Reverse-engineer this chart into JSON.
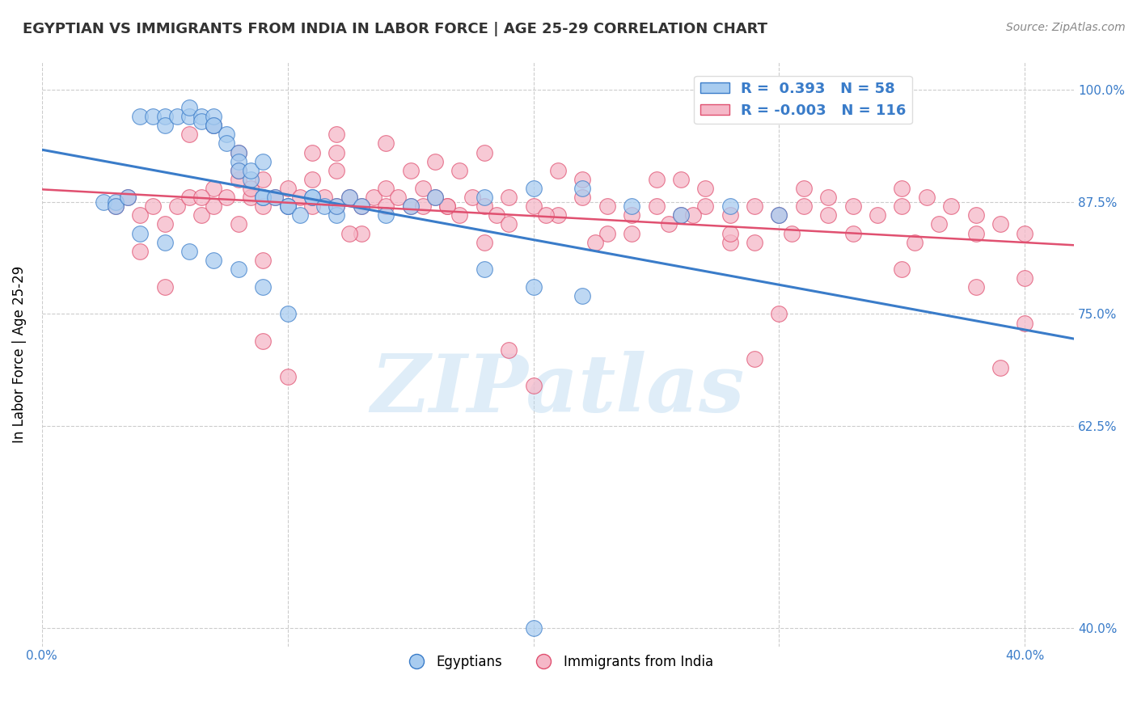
{
  "title": "EGYPTIAN VS IMMIGRANTS FROM INDIA IN LABOR FORCE | AGE 25-29 CORRELATION CHART",
  "source_text": "Source: ZipAtlas.com",
  "ylabel": "In Labor Force | Age 25-29",
  "xlim": [
    0.0,
    0.42
  ],
  "ylim": [
    0.38,
    1.03
  ],
  "yticks": [
    0.4,
    0.625,
    0.75,
    0.875,
    1.0
  ],
  "ytick_labels": [
    "40.0%",
    "62.5%",
    "75.0%",
    "87.5%",
    "100.0%"
  ],
  "xticks": [
    0.0,
    0.1,
    0.2,
    0.3,
    0.4
  ],
  "xtick_labels": [
    "0.0%",
    "",
    "",
    "",
    "40.0%"
  ],
  "blue_color": "#A8CCF0",
  "pink_color": "#F5B8C8",
  "trend_blue": "#3A7CC9",
  "trend_pink": "#E05070",
  "background_color": "#ffffff",
  "grid_color": "#cccccc",
  "watermark": "ZIPatlas",
  "blue_scatter_x": [
    0.025,
    0.03,
    0.03,
    0.035,
    0.04,
    0.045,
    0.05,
    0.05,
    0.055,
    0.06,
    0.06,
    0.065,
    0.065,
    0.07,
    0.07,
    0.07,
    0.075,
    0.075,
    0.08,
    0.08,
    0.08,
    0.085,
    0.085,
    0.09,
    0.09,
    0.09,
    0.095,
    0.1,
    0.1,
    0.105,
    0.11,
    0.11,
    0.115,
    0.12,
    0.12,
    0.125,
    0.13,
    0.14,
    0.15,
    0.16,
    0.18,
    0.2,
    0.22,
    0.24,
    0.26,
    0.28,
    0.3,
    0.18,
    0.2,
    0.22,
    0.04,
    0.05,
    0.06,
    0.07,
    0.08,
    0.09,
    0.1,
    0.2
  ],
  "blue_scatter_y": [
    0.875,
    0.875,
    0.87,
    0.88,
    0.97,
    0.97,
    0.97,
    0.96,
    0.97,
    0.97,
    0.98,
    0.97,
    0.965,
    0.96,
    0.97,
    0.96,
    0.95,
    0.94,
    0.93,
    0.92,
    0.91,
    0.9,
    0.91,
    0.92,
    0.88,
    0.88,
    0.88,
    0.87,
    0.87,
    0.86,
    0.88,
    0.88,
    0.87,
    0.86,
    0.87,
    0.88,
    0.87,
    0.86,
    0.87,
    0.88,
    0.88,
    0.89,
    0.89,
    0.87,
    0.86,
    0.87,
    0.86,
    0.8,
    0.78,
    0.77,
    0.84,
    0.83,
    0.82,
    0.81,
    0.8,
    0.78,
    0.75,
    0.4
  ],
  "pink_scatter_x": [
    0.03,
    0.035,
    0.04,
    0.045,
    0.05,
    0.055,
    0.06,
    0.065,
    0.07,
    0.07,
    0.075,
    0.08,
    0.08,
    0.085,
    0.085,
    0.09,
    0.09,
    0.095,
    0.1,
    0.1,
    0.105,
    0.11,
    0.11,
    0.115,
    0.12,
    0.12,
    0.125,
    0.13,
    0.135,
    0.14,
    0.14,
    0.145,
    0.15,
    0.155,
    0.16,
    0.165,
    0.17,
    0.175,
    0.18,
    0.185,
    0.19,
    0.2,
    0.21,
    0.22,
    0.23,
    0.24,
    0.25,
    0.26,
    0.27,
    0.28,
    0.29,
    0.3,
    0.31,
    0.32,
    0.33,
    0.34,
    0.35,
    0.36,
    0.37,
    0.38,
    0.39,
    0.4,
    0.12,
    0.17,
    0.22,
    0.27,
    0.32,
    0.08,
    0.13,
    0.18,
    0.23,
    0.28,
    0.33,
    0.06,
    0.11,
    0.16,
    0.21,
    0.26,
    0.31,
    0.07,
    0.12,
    0.14,
    0.19,
    0.24,
    0.29,
    0.04,
    0.09,
    0.35,
    0.4,
    0.38,
    0.05,
    0.155,
    0.205,
    0.255,
    0.305,
    0.355,
    0.08,
    0.18,
    0.28,
    0.38,
    0.09,
    0.19,
    0.29,
    0.39,
    0.1,
    0.2,
    0.3,
    0.4,
    0.15,
    0.25,
    0.35,
    0.065,
    0.165,
    0.265,
    0.365,
    0.125,
    0.225
  ],
  "pink_scatter_y": [
    0.87,
    0.88,
    0.86,
    0.87,
    0.85,
    0.87,
    0.88,
    0.86,
    0.87,
    0.89,
    0.88,
    0.9,
    0.91,
    0.88,
    0.89,
    0.87,
    0.9,
    0.88,
    0.87,
    0.89,
    0.88,
    0.87,
    0.9,
    0.88,
    0.87,
    0.91,
    0.88,
    0.87,
    0.88,
    0.87,
    0.89,
    0.88,
    0.87,
    0.89,
    0.88,
    0.87,
    0.86,
    0.88,
    0.87,
    0.86,
    0.88,
    0.87,
    0.86,
    0.88,
    0.87,
    0.86,
    0.87,
    0.86,
    0.87,
    0.86,
    0.87,
    0.86,
    0.87,
    0.86,
    0.87,
    0.86,
    0.87,
    0.88,
    0.87,
    0.86,
    0.85,
    0.84,
    0.93,
    0.91,
    0.9,
    0.89,
    0.88,
    0.85,
    0.84,
    0.83,
    0.84,
    0.83,
    0.84,
    0.95,
    0.93,
    0.92,
    0.91,
    0.9,
    0.89,
    0.96,
    0.95,
    0.94,
    0.85,
    0.84,
    0.83,
    0.82,
    0.81,
    0.8,
    0.79,
    0.78,
    0.78,
    0.87,
    0.86,
    0.85,
    0.84,
    0.83,
    0.93,
    0.93,
    0.84,
    0.84,
    0.72,
    0.71,
    0.7,
    0.69,
    0.68,
    0.67,
    0.75,
    0.74,
    0.91,
    0.9,
    0.89,
    0.88,
    0.87,
    0.86,
    0.85,
    0.84,
    0.83
  ]
}
